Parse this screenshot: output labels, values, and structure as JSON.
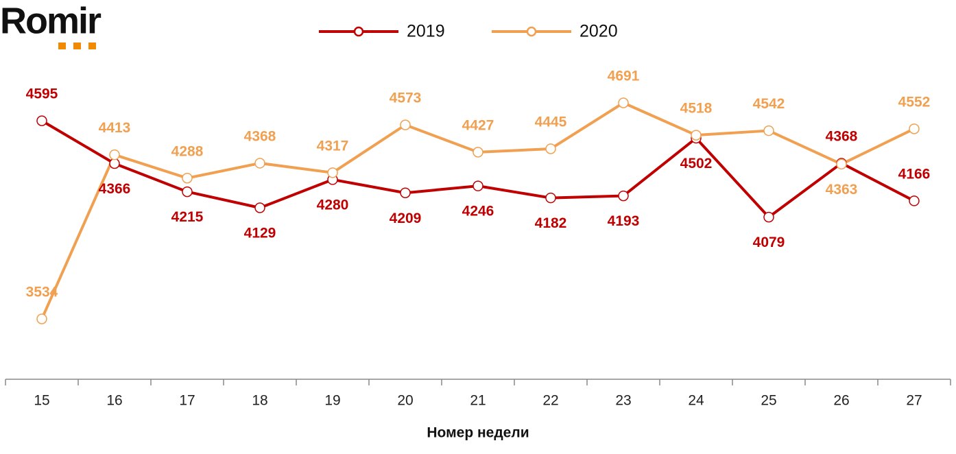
{
  "logo": "Romir",
  "chart_data": {
    "type": "line",
    "x_label": "Номер недели",
    "categories": [
      "15",
      "16",
      "17",
      "18",
      "19",
      "20",
      "21",
      "22",
      "23",
      "24",
      "25",
      "26",
      "27"
    ],
    "series": [
      {
        "name": "2019",
        "color": "#c00000",
        "values": [
          4595,
          4366,
          4215,
          4129,
          4280,
          4209,
          4246,
          4182,
          4193,
          4502,
          4079,
          4368,
          4166
        ]
      },
      {
        "name": "2020",
        "color": "#f0a050",
        "values": [
          3534,
          4413,
          4288,
          4368,
          4317,
          4573,
          4427,
          4445,
          4691,
          4518,
          4542,
          4363,
          4552
        ]
      }
    ]
  }
}
